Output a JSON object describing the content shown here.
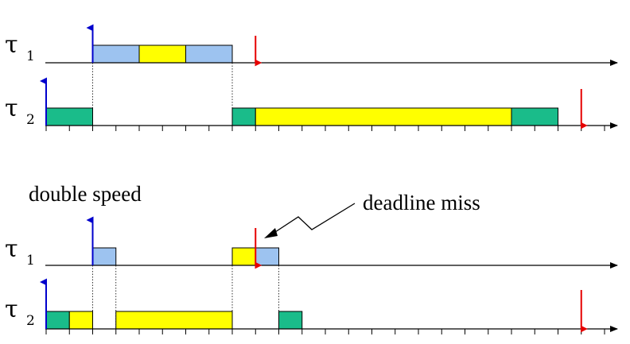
{
  "colors": {
    "blue_block": "#9DC3F0",
    "yellow_block": "#FFFF00",
    "green_block": "#1ABC8A",
    "release_arrow": "#0000CC",
    "deadline_arrow": "#E60000",
    "axis": "#000000"
  },
  "diagrams": [
    {
      "annotation": "",
      "tasks": [
        {
          "symbol": "τ",
          "index": "1",
          "releases": [
            2
          ],
          "deadlines": [
            9
          ],
          "blocks": [
            {
              "start": 2,
              "end": 4,
              "color": "blue"
            },
            {
              "start": 4,
              "end": 6,
              "color": "yellow"
            },
            {
              "start": 6,
              "end": 8,
              "color": "blue"
            }
          ]
        },
        {
          "symbol": "τ",
          "index": "2",
          "releases": [
            0
          ],
          "deadlines": [
            23
          ],
          "blocks": [
            {
              "start": 0,
              "end": 2,
              "color": "green"
            },
            {
              "start": 8,
              "end": 9,
              "color": "green"
            },
            {
              "start": 9,
              "end": 20,
              "color": "yellow"
            },
            {
              "start": 20,
              "end": 22,
              "color": "green"
            }
          ]
        }
      ],
      "connectors": [
        2,
        8
      ]
    },
    {
      "annotation": "double speed",
      "callout": "deadline miss",
      "tasks": [
        {
          "symbol": "τ",
          "index": "1",
          "releases": [
            2
          ],
          "deadlines": [
            9
          ],
          "blocks": [
            {
              "start": 2,
              "end": 3,
              "color": "blue"
            },
            {
              "start": 8,
              "end": 9,
              "color": "yellow"
            },
            {
              "start": 9,
              "end": 10,
              "color": "blue"
            }
          ]
        },
        {
          "symbol": "τ",
          "index": "2",
          "releases": [
            0
          ],
          "deadlines": [
            23
          ],
          "blocks": [
            {
              "start": 0,
              "end": 1,
              "color": "green"
            },
            {
              "start": 1,
              "end": 2,
              "color": "yellow"
            },
            {
              "start": 3,
              "end": 8,
              "color": "yellow"
            },
            {
              "start": 10,
              "end": 11,
              "color": "green"
            }
          ]
        }
      ],
      "connectors": [
        2,
        3,
        8,
        10
      ]
    }
  ]
}
